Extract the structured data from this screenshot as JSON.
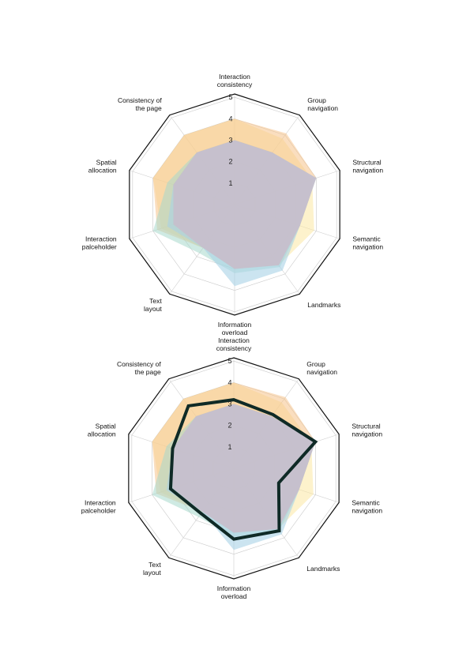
{
  "chart_data": [
    {
      "type": "radar",
      "axes": [
        [
          "Interaction",
          "consistency"
        ],
        [
          "Group",
          "navigation"
        ],
        [
          "Structural",
          "navigation"
        ],
        [
          "Semantic",
          "navigation"
        ],
        [
          "Landmarks"
        ],
        [
          "Information",
          "overload"
        ],
        [
          "Text",
          "layout"
        ],
        [
          "Interaction",
          "palceholder"
        ],
        [
          "Spatial",
          "allocation"
        ],
        [
          "Consistency of",
          "the page"
        ]
      ],
      "ticks": [
        "1",
        "2",
        "3",
        "4",
        "5"
      ],
      "range": [
        0,
        5
      ],
      "series": [
        {
          "color": "#fbe7a3",
          "opacity": 0.55,
          "values": [
            4.0,
            3.8,
            3.8,
            3.9,
            3.5,
            3.0,
            2.5,
            3.6,
            4.0,
            4.0
          ]
        },
        {
          "color": "#f5c28a",
          "opacity": 0.55,
          "values": [
            4.0,
            4.1,
            4.0,
            3.2,
            3.5,
            3.0,
            2.5,
            3.8,
            4.0,
            4.0
          ]
        },
        {
          "color": "#a8d9cc",
          "opacity": 0.55,
          "values": [
            3.0,
            3.0,
            4.0,
            3.2,
            3.6,
            3.2,
            2.8,
            4.0,
            3.3,
            3.0
          ]
        },
        {
          "color": "#a9d2e6",
          "opacity": 0.6,
          "values": [
            3.0,
            3.0,
            4.0,
            3.2,
            3.8,
            3.8,
            2.5,
            3.3,
            3.0,
            3.0
          ]
        },
        {
          "color": "#d9a9c4",
          "opacity": 0.45,
          "values": [
            3.0,
            3.0,
            4.0,
            3.2,
            3.5,
            3.0,
            2.5,
            3.0,
            3.0,
            3.0
          ]
        }
      ]
    },
    {
      "type": "radar",
      "axes": [
        [
          "Interaction",
          "consistency"
        ],
        [
          "Group",
          "navigation"
        ],
        [
          "Structural",
          "navigation"
        ],
        [
          "Semantic",
          "navigation"
        ],
        [
          "Landmarks"
        ],
        [
          "Information",
          "overload"
        ],
        [
          "Text",
          "layout"
        ],
        [
          "Interaction",
          "palceholder"
        ],
        [
          "Spatial",
          "allocation"
        ],
        [
          "Consistency of",
          "the page"
        ]
      ],
      "ticks": [
        "1",
        "2",
        "3",
        "4",
        "5"
      ],
      "range": [
        0,
        5
      ],
      "series": [
        {
          "color": "#fbe7a3",
          "opacity": 0.55,
          "values": [
            4.0,
            3.8,
            3.8,
            3.9,
            3.5,
            3.0,
            2.5,
            3.6,
            4.0,
            4.0
          ]
        },
        {
          "color": "#f5c28a",
          "opacity": 0.55,
          "values": [
            4.0,
            4.1,
            4.0,
            3.2,
            3.5,
            3.0,
            2.5,
            3.8,
            4.0,
            4.0
          ]
        },
        {
          "color": "#a8d9cc",
          "opacity": 0.55,
          "values": [
            3.0,
            3.0,
            4.0,
            3.2,
            3.6,
            3.2,
            2.8,
            4.0,
            3.3,
            3.0
          ]
        },
        {
          "color": "#a9d2e6",
          "opacity": 0.6,
          "values": [
            3.0,
            3.0,
            4.0,
            3.2,
            3.8,
            3.8,
            2.5,
            3.3,
            3.0,
            3.0
          ]
        },
        {
          "color": "#d9a9c4",
          "opacity": 0.45,
          "values": [
            3.0,
            3.0,
            4.0,
            3.2,
            3.5,
            3.0,
            2.5,
            3.0,
            3.0,
            3.0
          ]
        }
      ],
      "highlight": {
        "color": "#0f2a26",
        "values": [
          3.2,
          3.1,
          4.0,
          2.2,
          3.6,
          3.3,
          2.6,
          3.1,
          3.0,
          3.6
        ]
      }
    }
  ]
}
